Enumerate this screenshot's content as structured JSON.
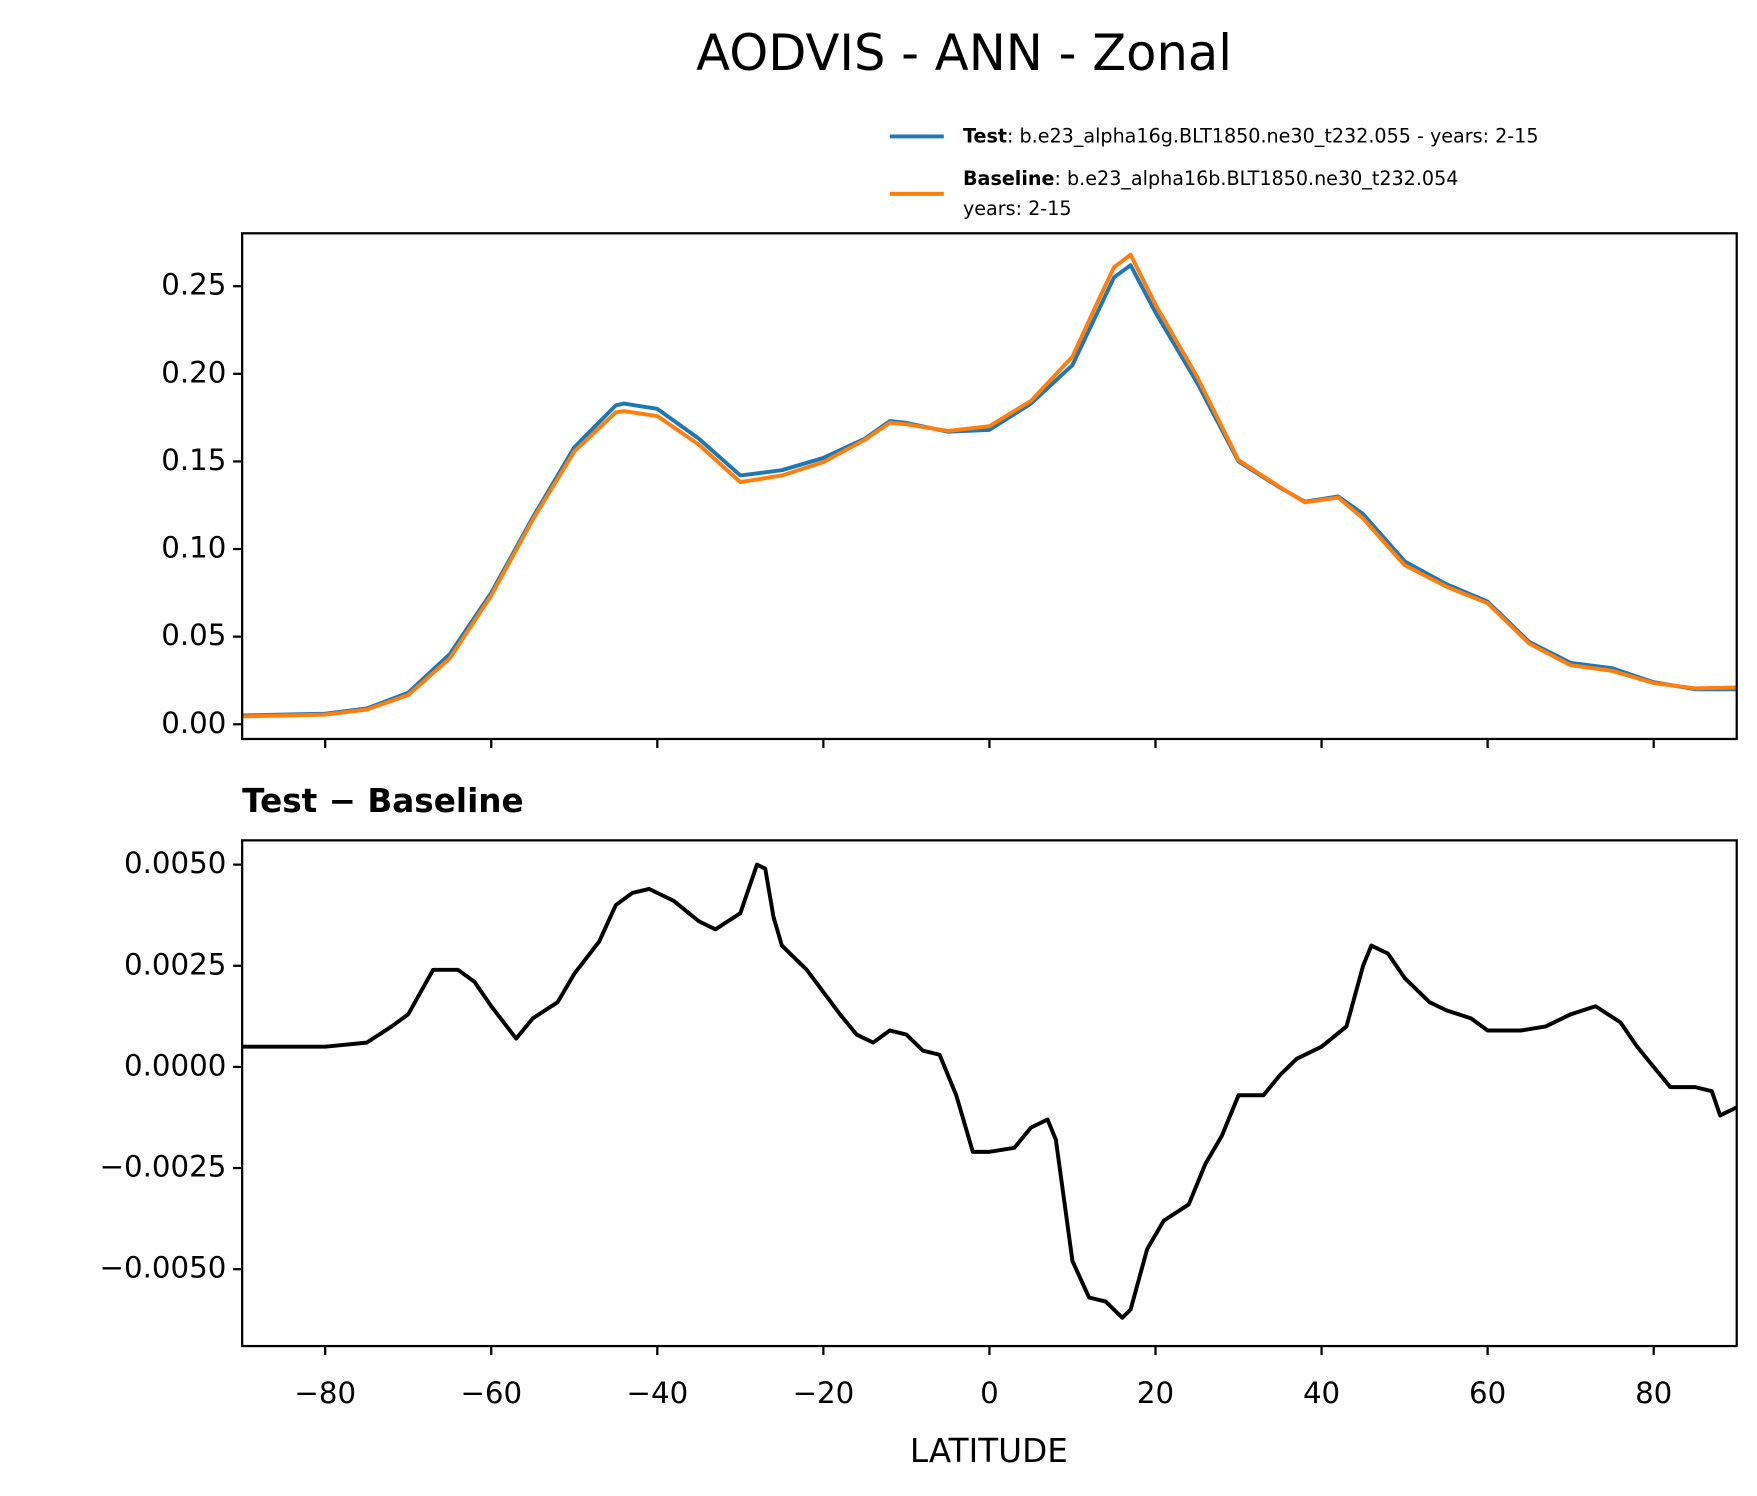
{
  "chart_data": [
    {
      "type": "line",
      "title": "AODVIS - ANN - Zonal",
      "x": [
        -90,
        -85,
        -80,
        -75,
        -70,
        -65,
        -60,
        -55,
        -50,
        -45,
        -44,
        -40,
        -35,
        -30,
        -25,
        -20,
        -15,
        -12,
        -10,
        -5,
        0,
        5,
        10,
        13,
        15,
        17,
        20,
        25,
        30,
        35,
        38,
        42,
        45,
        50,
        55,
        60,
        65,
        70,
        75,
        80,
        85,
        90
      ],
      "series": [
        {
          "name": "Test",
          "description": [
            ": b.e23_alpha16g.BLT1850.ne30_t232.055 - years: 2-15"
          ],
          "color": "#1f77b4",
          "values": [
            0.005,
            0.0055,
            0.006,
            0.009,
            0.018,
            0.04,
            0.075,
            0.118,
            0.158,
            0.182,
            0.183,
            0.18,
            0.163,
            0.142,
            0.145,
            0.152,
            0.163,
            0.173,
            0.172,
            0.167,
            0.168,
            0.183,
            0.205,
            0.235,
            0.255,
            0.262,
            0.235,
            0.195,
            0.15,
            0.135,
            0.127,
            0.13,
            0.12,
            0.093,
            0.08,
            0.07,
            0.047,
            0.035,
            0.032,
            0.024,
            0.02,
            0.02
          ]
        },
        {
          "name": "Baseline",
          "description": [
            ": b.e23_alpha16b.BLT1850.ne30_t232.054",
            "years: 2-15"
          ],
          "color": "#ff7f0e",
          "values": [
            0.0045,
            0.005,
            0.0055,
            0.0084,
            0.0167,
            0.0376,
            0.0735,
            0.1168,
            0.1557,
            0.178,
            0.1787,
            0.1759,
            0.1596,
            0.1382,
            0.142,
            0.1496,
            0.1624,
            0.1721,
            0.1712,
            0.1674,
            0.1701,
            0.1845,
            0.2098,
            0.2407,
            0.2608,
            0.268,
            0.2395,
            0.1984,
            0.1507,
            0.1353,
            0.1267,
            0.1294,
            0.1175,
            0.0908,
            0.0786,
            0.0691,
            0.0461,
            0.0337,
            0.0305,
            0.0235,
            0.0205,
            0.021
          ]
        }
      ],
      "xlim": [
        -90,
        90
      ],
      "xticks": [
        -80,
        -60,
        -40,
        -20,
        0,
        20,
        40,
        60,
        80
      ],
      "ylim": [
        -0.0084,
        0.2802
      ],
      "yticks": [
        {
          "value": 0,
          "label": "0.00"
        },
        {
          "value": 0.05,
          "label": "0.05"
        },
        {
          "value": 0.1,
          "label": "0.10"
        },
        {
          "value": 0.15,
          "label": "0.15"
        },
        {
          "value": 0.2,
          "label": "0.20"
        },
        {
          "value": 0.25,
          "label": "0.25"
        }
      ],
      "legend": "upper right"
    },
    {
      "type": "line",
      "title": "Test − Baseline",
      "xlabel": "LATITUDE",
      "x": [
        -90,
        -85,
        -80,
        -75,
        -72,
        -70,
        -67,
        -64,
        -62,
        -60,
        -57,
        -55,
        -52,
        -50,
        -47,
        -45,
        -43,
        -41,
        -38,
        -35,
        -33,
        -30,
        -28,
        -27,
        -26,
        -25,
        -22,
        -18,
        -16,
        -14,
        -12,
        -10,
        -8,
        -6,
        -4,
        -2,
        0,
        3,
        5,
        7,
        8,
        10,
        12,
        14,
        16,
        17,
        19,
        21,
        24,
        26,
        28,
        30,
        33,
        35,
        37,
        40,
        43,
        45,
        46,
        48,
        50,
        53,
        55,
        58,
        60,
        64,
        67,
        70,
        73,
        76,
        78,
        82,
        85,
        87,
        88,
        90
      ],
      "series": [
        {
          "name": "Test − Baseline",
          "color": "#000000",
          "values": [
            0.0005,
            0.0005,
            0.0005,
            0.0006,
            0.001,
            0.0013,
            0.0024,
            0.0024,
            0.0021,
            0.0015,
            0.0007,
            0.0012,
            0.0016,
            0.0023,
            0.0031,
            0.004,
            0.0043,
            0.0044,
            0.0041,
            0.0036,
            0.0034,
            0.0038,
            0.005,
            0.0049,
            0.0037,
            0.003,
            0.0024,
            0.0013,
            0.0008,
            0.0006,
            0.0009,
            0.0008,
            0.0004,
            0.0003,
            -0.0007,
            -0.0021,
            -0.0021,
            -0.002,
            -0.0015,
            -0.0013,
            -0.0018,
            -0.0048,
            -0.0057,
            -0.0058,
            -0.0062,
            -0.006,
            -0.0045,
            -0.0038,
            -0.0034,
            -0.0024,
            -0.0017,
            -0.0007,
            -0.0007,
            -0.0002,
            0.0002,
            0.0005,
            0.001,
            0.0025,
            0.003,
            0.0028,
            0.0022,
            0.0016,
            0.0014,
            0.0012,
            0.0009,
            0.0009,
            0.001,
            0.0013,
            0.0015,
            0.0011,
            0.0005,
            -0.0005,
            -0.0005,
            -0.0006,
            -0.0012,
            -0.001
          ]
        }
      ],
      "xlim": [
        -90,
        90
      ],
      "xticks": [
        {
          "value": -80,
          "label": "−80"
        },
        {
          "value": -60,
          "label": "−60"
        },
        {
          "value": -40,
          "label": "−40"
        },
        {
          "value": -20,
          "label": "−20"
        },
        0,
        20,
        40,
        60,
        80
      ],
      "ylim": [
        -0.0069,
        0.0056
      ],
      "yticks": [
        {
          "value": -0.005,
          "label": "−0.0050"
        },
        {
          "value": -0.0025,
          "label": "−0.0025"
        },
        {
          "value": 0,
          "label": "0.0000"
        },
        {
          "value": 0.0025,
          "label": "0.0025"
        },
        {
          "value": 0.005,
          "label": "0.0050"
        }
      ]
    }
  ]
}
